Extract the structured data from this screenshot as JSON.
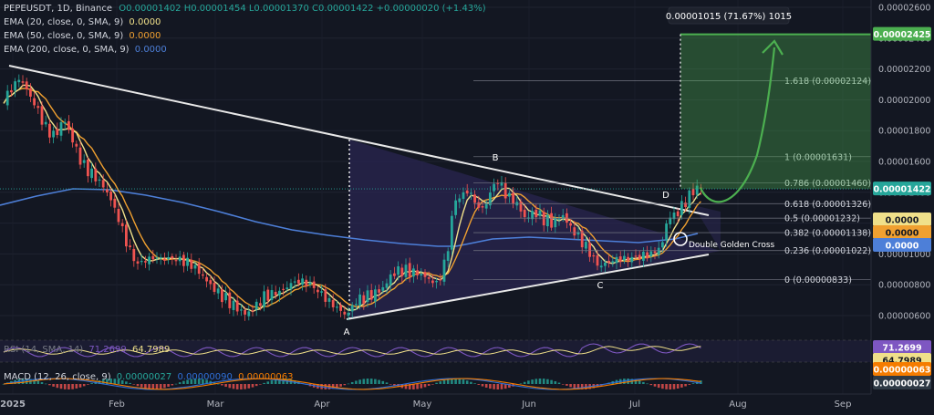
{
  "header": {
    "symbol_line": "PEPEUSDT, 1D, Binance",
    "ohlc": "O0.00001402 H0.00001454 L0.00001370 C0.00001422 +0.00000020 (+1.43%)",
    "ema20_label": "EMA (20, close, 0, SMA, 9)",
    "ema20_value": "0.0000",
    "ema50_label": "EMA (50, close, 0, SMA, 9)",
    "ema50_value": "0.0000",
    "ema200_label": "EMA (200, close, 0, SMA, 9)",
    "ema200_value": "0.0000"
  },
  "colors": {
    "background": "#131722",
    "up": "#26a69a",
    "down": "#ef5350",
    "ema20": "#f0e08a",
    "ema50": "#f0a030",
    "ema200": "#4d7fd8",
    "projection": "#4caf50",
    "rsi": "#7e57c2",
    "macd": "#2f6fd8",
    "macd_signal": "#f57c00",
    "triangle_fill": "#2a2650"
  },
  "measure_label": "0.00001015 (71.67%) 1015",
  "target_badge": "0.00002425",
  "price_badge": "0.00001422",
  "ema_badges": [
    "0.0000",
    "0.0000",
    "0.0000"
  ],
  "rsi_badges": [
    "71.2699",
    "64.7989"
  ],
  "macd_badges": [
    "0.00000063",
    "0.00000027"
  ],
  "rsi_legend": {
    "label": "RSI (14, SMA, 14)",
    "v1": "71.2699",
    "v2": "64.7989"
  },
  "macd_legend": {
    "label": "MACD (12, 26, close, 9)",
    "v1": "0.00000027",
    "v2": "0.00000090",
    "v3": "0.00000063"
  },
  "chart_data": {
    "type": "candlestick",
    "symbol": "PEPEUSDT",
    "timeframe": "1D",
    "exchange": "Binance",
    "y_axis": {
      "ticks": [
        "0.00002600",
        "0.00002400",
        "0.00002200",
        "0.00002000",
        "0.00001800",
        "0.00001600",
        "0.00001400",
        "0.00001200",
        "0.00001000",
        "0.00000800",
        "0.00000600"
      ]
    },
    "x_axis": {
      "ticks": [
        "2025",
        "Feb",
        "Mar",
        "Apr",
        "May",
        "Jun",
        "Jul",
        "Aug",
        "Sep"
      ]
    },
    "fib_levels": [
      {
        "label": "1.618 (0.00002124)",
        "value": 2.124e-05
      },
      {
        "label": "1 (0.00001631)",
        "value": 1.631e-05
      },
      {
        "label": "0.786 (0.00001460)",
        "value": 1.46e-05
      },
      {
        "label": "0.618 (0.00001326)",
        "value": 1.326e-05
      },
      {
        "label": "0.5 (0.00001232)",
        "value": 1.232e-05
      },
      {
        "label": "0.382 (0.00001138)",
        "value": 1.138e-05
      },
      {
        "label": "0.236 (0.00001022)",
        "value": 1.022e-05
      },
      {
        "label": "0 (0.00000833)",
        "value": 8.33e-06
      }
    ],
    "pattern_labels": [
      "A",
      "B",
      "C",
      "D"
    ],
    "annotation": "Double Golden Cross",
    "last_close": 1.422e-05,
    "target": 2.425e-05
  }
}
